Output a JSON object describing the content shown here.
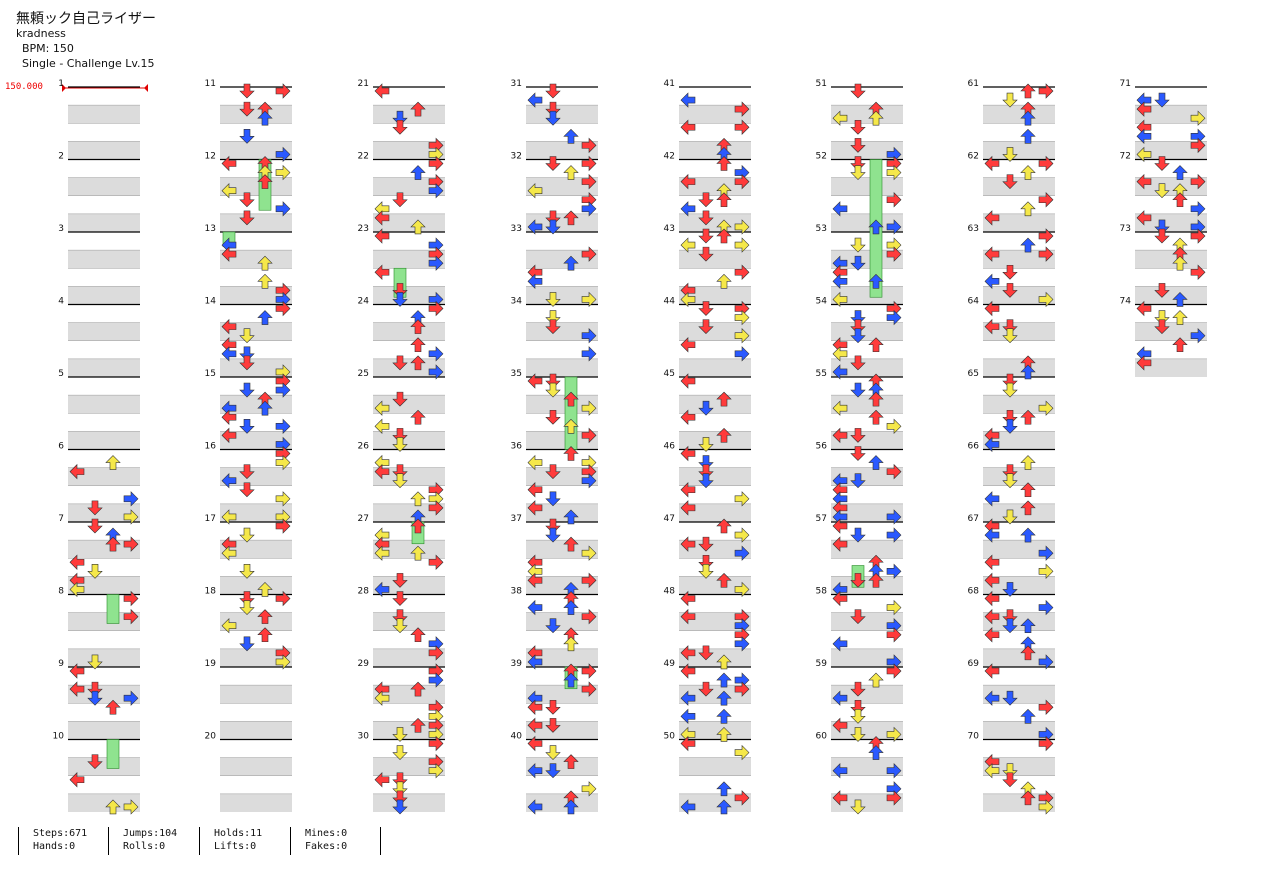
{
  "header": {
    "title": "無頼ック自己ライザー",
    "artist": "kradness",
    "bpm": "BPM: 150",
    "difficulty": "Single - Challenge Lv.15"
  },
  "bpm_marker": "150.000",
  "measures_total": 74,
  "stats": {
    "steps": "Steps:671",
    "hands": "Hands:0",
    "jumps": "Jumps:104",
    "rolls": "Rolls:0",
    "holds": "Holds:11",
    "lifts": "Lifts:0",
    "mines": "Mines:0",
    "fakes": "Fakes:0"
  },
  "colors": {
    "red": "#ff3b3b",
    "blue": "#2a59ff",
    "yellow": "#f5e84a",
    "hold_green": "#8fe38f",
    "band": "#dcdcdc",
    "marker": "#e00000"
  },
  "icons": [
    "left-arrow-icon",
    "down-arrow-icon",
    "up-arrow-icon",
    "right-arrow-icon",
    "hold-icon"
  ]
}
